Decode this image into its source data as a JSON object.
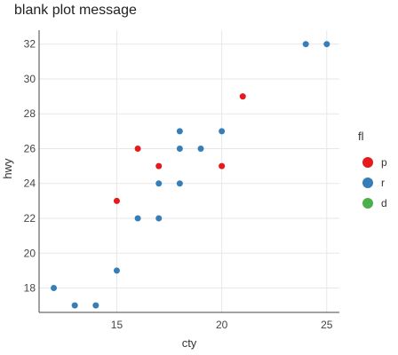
{
  "chart_data": {
    "type": "scatter",
    "title": "blank plot message",
    "xlabel": "cty",
    "ylabel": "hwy",
    "xlim": [
      11.3,
      25.6
    ],
    "ylim": [
      16.6,
      32.8
    ],
    "x_ticks": [
      15,
      20,
      25
    ],
    "y_ticks": [
      18,
      20,
      22,
      24,
      26,
      28,
      30,
      32
    ],
    "grid": true,
    "legend": {
      "title": "fl",
      "position": "right"
    },
    "series": [
      {
        "name": "p",
        "color": "#e41a1c",
        "points": [
          {
            "x": 15,
            "y": 23
          },
          {
            "x": 16,
            "y": 26
          },
          {
            "x": 17,
            "y": 25
          },
          {
            "x": 20,
            "y": 25
          },
          {
            "x": 21,
            "y": 29
          }
        ]
      },
      {
        "name": "r",
        "color": "#377eb8",
        "points": [
          {
            "x": 12,
            "y": 18
          },
          {
            "x": 13,
            "y": 17
          },
          {
            "x": 14,
            "y": 17
          },
          {
            "x": 15,
            "y": 19
          },
          {
            "x": 16,
            "y": 22
          },
          {
            "x": 17,
            "y": 22
          },
          {
            "x": 17,
            "y": 24
          },
          {
            "x": 18,
            "y": 24
          },
          {
            "x": 18,
            "y": 26
          },
          {
            "x": 18,
            "y": 27
          },
          {
            "x": 19,
            "y": 26
          },
          {
            "x": 20,
            "y": 27
          },
          {
            "x": 24,
            "y": 32
          },
          {
            "x": 25,
            "y": 32
          }
        ]
      },
      {
        "name": "d",
        "color": "#4daf4a",
        "points": []
      }
    ]
  }
}
